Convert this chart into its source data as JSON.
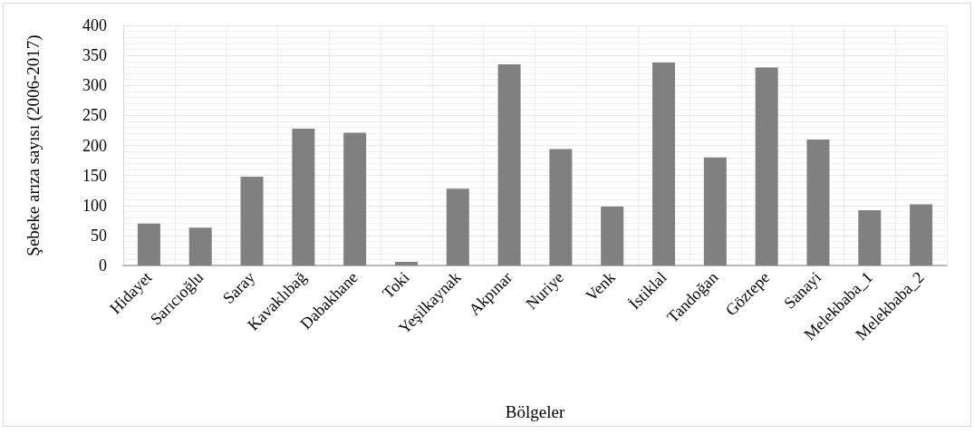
{
  "chart_data": {
    "type": "bar",
    "xlabel": "Bölgeler",
    "ylabel": "Şebeke arıza sayısı (2006-2017)",
    "categories": [
      "Hidayet",
      "Sarıcıoğlu",
      "Saray",
      "Kavaklıbağ",
      "Dabakhane",
      "Toki",
      "Yeşilkaynak",
      "Akpınar",
      "Nuriye",
      "Venk",
      "İstiklal",
      "Tandoğan",
      "Göztepe",
      "Sanayi",
      "Melekbaba_1",
      "Melekbaba_2"
    ],
    "values": [
      70,
      63,
      148,
      228,
      221,
      6,
      128,
      335,
      194,
      98,
      338,
      180,
      330,
      210,
      92,
      102
    ],
    "color": "#808080",
    "ylim": [
      0,
      400
    ],
    "yticks": [
      0,
      50,
      100,
      150,
      200,
      250,
      300,
      350,
      400
    ],
    "grid": true
  }
}
